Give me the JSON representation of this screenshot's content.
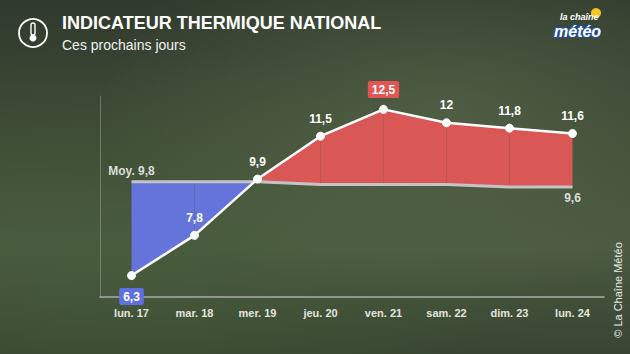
{
  "chart_data": {
    "type": "line",
    "title": "INDICATEUR THERMIQUE NATIONAL",
    "subtitle": "Ces prochains jours",
    "logo": [
      "la chaîne",
      "météo"
    ],
    "source": "© La Chaîne Météo",
    "categories": [
      "lun. 17",
      "mar. 18",
      "mer. 19",
      "jeu. 20",
      "ven. 21",
      "sam. 22",
      "dim. 23",
      "lun. 24"
    ],
    "series": [
      {
        "values": [
          6.3,
          7.8,
          9.9,
          11.5,
          12.5,
          12,
          11.8,
          11.6
        ],
        "value_labels": [
          "6,3",
          "7,8",
          "9,9",
          "11,5",
          "12,5",
          "12",
          "11,8",
          "11,6"
        ],
        "color": "#ffffff",
        "marker": "circle"
      },
      {
        "values": [
          9.8,
          9.8,
          9.8,
          9.7,
          9.7,
          9.7,
          9.6,
          9.6
        ],
        "value_labels": [
          "Moy. 9,8",
          null,
          null,
          null,
          null,
          null,
          null,
          "9,6"
        ],
        "color": "#c4c4c4",
        "marker": "none"
      }
    ],
    "ylim": [
      5.5,
      13
    ],
    "data_labels": true,
    "tick_labels": "x",
    "grid": false
  }
}
